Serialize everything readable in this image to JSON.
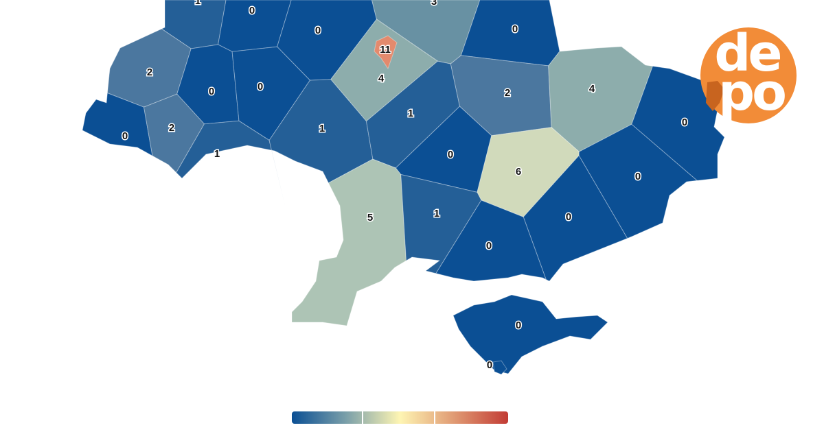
{
  "regions": [
    {
      "value": 1,
      "color": "#245f97"
    },
    {
      "value": 0,
      "color": "#0b4f94"
    },
    {
      "value": 0,
      "color": "#0b4f94"
    },
    {
      "value": 11,
      "color": "#e38a6d"
    },
    {
      "value": 3,
      "color": "#6891a3"
    },
    {
      "value": 0,
      "color": "#0b4f94"
    },
    {
      "value": 2,
      "color": "#4b779f"
    },
    {
      "value": 0,
      "color": "#0b4f94"
    },
    {
      "value": 0,
      "color": "#0b4f94"
    },
    {
      "value": 4,
      "color": "#8dadac"
    },
    {
      "value": 2,
      "color": "#4b779f"
    },
    {
      "value": 4,
      "color": "#8dadac"
    },
    {
      "value": 0,
      "color": "#0b4f94"
    },
    {
      "value": 2,
      "color": "#4b779f"
    },
    {
      "value": 1,
      "color": "#245f97"
    },
    {
      "value": 1,
      "color": "#245f97"
    },
    {
      "value": 1,
      "color": "#245f97"
    },
    {
      "value": 0,
      "color": "#0b4f94"
    },
    {
      "value": 0,
      "color": "#0b4f94"
    },
    {
      "value": 6,
      "color": "#d1dabb"
    },
    {
      "value": 0,
      "color": "#0b4f94"
    },
    {
      "value": 5,
      "color": "#adc4b5"
    },
    {
      "value": 1,
      "color": "#245f97"
    },
    {
      "value": 0,
      "color": "#0b4f94"
    },
    {
      "value": 0,
      "color": "#0b4f94"
    },
    {
      "value": 0,
      "color": "#0b4f94"
    },
    {
      "value": 0,
      "color": "#0b4f94"
    }
  ],
  "colorbar": {
    "colors": [
      "#0b4f94",
      "#7a9fa9",
      "#fef5b3",
      "#e09a73",
      "#c23b34"
    ]
  },
  "logo": {
    "line1": "de",
    "line2": "po"
  }
}
